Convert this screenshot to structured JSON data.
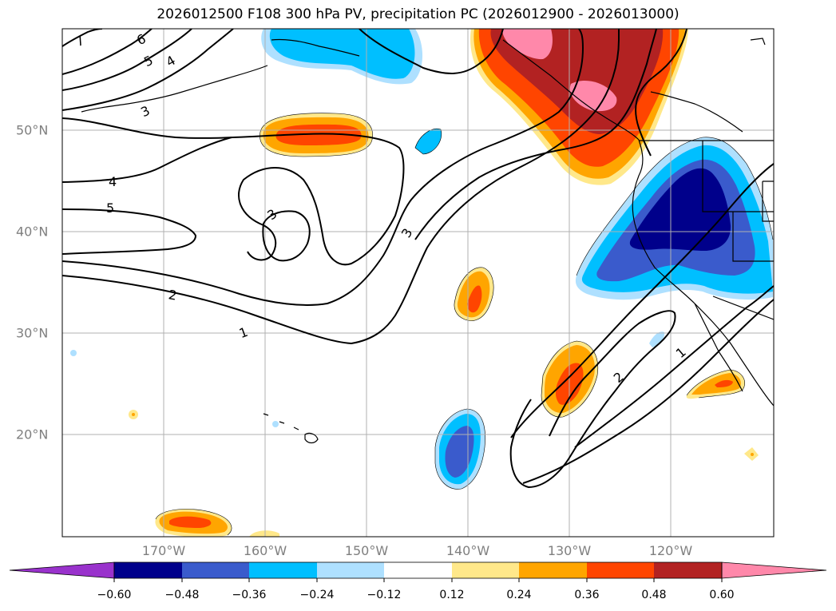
{
  "title": "2026012500 F108 300 hPa PV, precipitation PC (2026012900 - 2026013000)",
  "lon_labels": [
    "170°W",
    "160°W",
    "150°W",
    "140°W",
    "130°W",
    "120°W"
  ],
  "lat_labels": [
    "50°N",
    "40°N",
    "30°N",
    "20°N"
  ],
  "contour_labels": [
    "7",
    "6",
    "5",
    "4",
    "3",
    "4",
    "5",
    "3",
    "3",
    "2",
    "1",
    "2",
    "1"
  ],
  "colorbar": {
    "ticks": [
      "−0.60",
      "−0.48",
      "−0.36",
      "−0.24",
      "−0.12",
      "0.12",
      "0.24",
      "0.36",
      "0.48",
      "0.60"
    ],
    "colors": [
      "#9932cc",
      "#00008b",
      "#3a5bcc",
      "#00bfff",
      "#aee0ff",
      "#ffffff",
      "#ffe88a",
      "#ffa500",
      "#ff4500",
      "#b22222",
      "#ff88aa"
    ]
  }
}
